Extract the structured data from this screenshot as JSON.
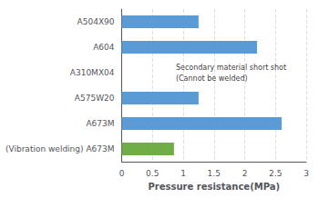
{
  "chart_data": {
    "type": "bar",
    "orientation": "horizontal",
    "xlabel": "Pressure resistance(MPa)",
    "categories": [
      "A504X90",
      "A604",
      "A310MX04",
      "A575W20",
      "A673M",
      "(Vibration welding) A673M"
    ],
    "values": [
      1.25,
      2.2,
      0,
      1.25,
      2.6,
      0.85
    ],
    "colors": [
      "#5b9bd5",
      "#5b9bd5",
      null,
      "#5b9bd5",
      "#5b9bd5",
      "#70ad47"
    ],
    "xlim": [
      0,
      3
    ],
    "xticks": [
      0,
      0.5,
      1,
      1.5,
      2,
      2.5,
      3
    ],
    "grid": true,
    "annotations": [
      {
        "text": "Secondary material short shot\n(Cannot be welded)",
        "x": 0.88,
        "y": "A310MX04"
      }
    ]
  }
}
